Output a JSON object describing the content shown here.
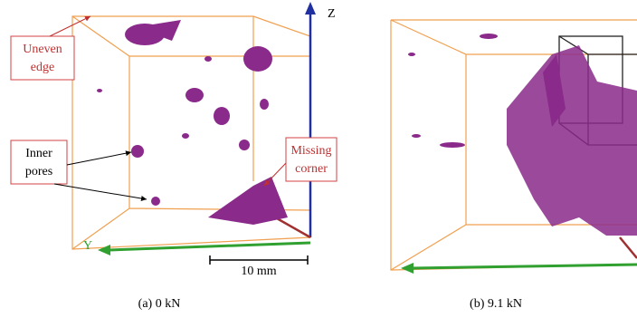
{
  "panels": [
    {
      "caption": "(a) 0 kN",
      "annotations": [
        {
          "lines": [
            "Uneven",
            "edge"
          ]
        },
        {
          "lines": [
            "Inner",
            "pores"
          ]
        },
        {
          "lines": [
            "Missing",
            "corner"
          ]
        }
      ],
      "axes": {
        "z": "Z",
        "y": "Y"
      },
      "scale_bar": "10 mm"
    },
    {
      "caption": "(b) 9.1 kN"
    }
  ]
}
